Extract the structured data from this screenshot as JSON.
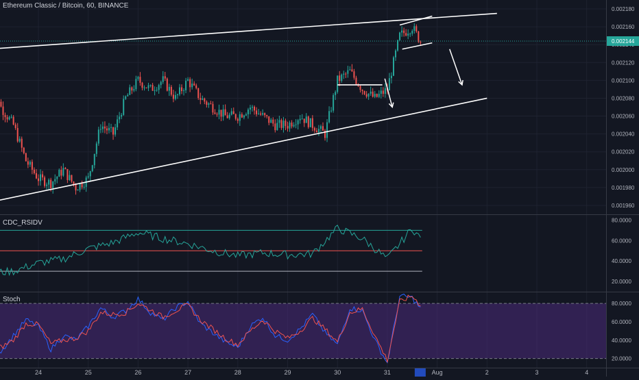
{
  "header": {
    "title": "Ethereum Classic / Bitcoin, 60, BINANCE"
  },
  "colors": {
    "background": "#131722",
    "grid": "#1e2230",
    "up": "#26a69a",
    "down": "#ef5350",
    "trendline": "#ffffff",
    "price_line": "#26a69a",
    "rsi_line": "#26a69a",
    "rsi_top": "#26a69a",
    "rsi_mid": "#ef5350",
    "rsi_bot": "#b2b5be",
    "rsi_fill": "#7b7a4a",
    "stoch_bg": "#2a1a4a",
    "stoch_band": "#4a2a7a",
    "stoch_k": "#2962ff",
    "stoch_d": "#ef5350"
  },
  "price_axis": {
    "ticks": [
      "0.002180",
      "0.002160",
      "0.002140",
      "0.002120",
      "0.002100",
      "0.002080",
      "0.002060",
      "0.002040",
      "0.002020",
      "0.002000",
      "0.001980",
      "0.001960"
    ],
    "last_price": "0.002144"
  },
  "rsi_pane": {
    "label": "CDC_RSIDV",
    "ticks": [
      "80.0000",
      "60.0000",
      "40.0000",
      "20.0000"
    ]
  },
  "stoch_pane": {
    "label": "Stoch",
    "ticks": [
      "80.0000",
      "60.0000",
      "40.0000",
      "20.0000"
    ]
  },
  "time_axis": {
    "labels": [
      "24",
      "25",
      "26",
      "27",
      "28",
      "29",
      "30",
      "31",
      "Aug",
      "2",
      "3",
      "4"
    ]
  },
  "chart_data": [
    {
      "type": "candlestick",
      "title": "Ethereum Classic / Bitcoin, 60, BINANCE",
      "x_unit": "day (Jul 23 = 0)",
      "ylim": [
        0.00195,
        0.00219
      ],
      "last_price": 0.002144,
      "close_path": [
        [
          0.0,
          0.002125
        ],
        [
          0.25,
          0.00207
        ],
        [
          0.5,
          0.00205
        ],
        [
          0.75,
          0.00201
        ],
        [
          1.0,
          0.00199
        ],
        [
          1.25,
          0.001985
        ],
        [
          1.5,
          0.002
        ],
        [
          1.75,
          0.00198
        ],
        [
          2.0,
          0.00199
        ],
        [
          2.25,
          0.00205
        ],
        [
          2.5,
          0.00204
        ],
        [
          2.75,
          0.00208
        ],
        [
          3.0,
          0.0021
        ],
        [
          3.25,
          0.00209
        ],
        [
          3.5,
          0.0021
        ],
        [
          3.75,
          0.00208
        ],
        [
          4.0,
          0.0021
        ],
        [
          4.25,
          0.00208
        ],
        [
          4.5,
          0.00207
        ],
        [
          4.75,
          0.00206
        ],
        [
          5.0,
          0.00206
        ],
        [
          5.25,
          0.00207
        ],
        [
          5.5,
          0.00206
        ],
        [
          5.75,
          0.00205
        ],
        [
          6.0,
          0.00205
        ],
        [
          6.25,
          0.00206
        ],
        [
          6.5,
          0.00205
        ],
        [
          6.75,
          0.00204
        ],
        [
          7.0,
          0.0021
        ],
        [
          7.25,
          0.00211
        ],
        [
          7.5,
          0.00209
        ],
        [
          7.75,
          0.00208
        ],
        [
          8.0,
          0.00209
        ],
        [
          8.25,
          0.00215
        ],
        [
          8.5,
          0.00216
        ],
        [
          8.7,
          0.00214
        ]
      ],
      "trendlines": [
        {
          "from": [
            0.0,
            0.002135
          ],
          "to": [
            10.2,
            0.002175
          ]
        },
        {
          "from": [
            0.15,
            0.001965
          ],
          "to": [
            10.0,
            0.00208
          ]
        },
        {
          "from": [
            8.25,
            0.002162
          ],
          "to": [
            8.9,
            0.002172
          ]
        },
        {
          "from": [
            8.3,
            0.002135
          ],
          "to": [
            8.9,
            0.002142
          ]
        },
        {
          "from": [
            7.0,
            0.002095
          ],
          "to": [
            7.9,
            0.002095
          ]
        }
      ],
      "arrows": [
        {
          "from": [
            7.95,
            0.002102
          ],
          "to": [
            8.1,
            0.00207
          ]
        },
        {
          "from": [
            9.25,
            0.002135
          ],
          "to": [
            9.5,
            0.002095
          ]
        }
      ]
    },
    {
      "type": "line",
      "title": "CDC_RSIDV",
      "ylim": [
        10,
        85
      ],
      "levels": [
        70,
        50,
        30
      ],
      "series": [
        {
          "x": [
            0,
            0.5,
            1.0,
            1.5,
            2.0,
            2.5,
            3.0,
            3.5,
            4.0,
            4.5,
            5.0,
            5.5,
            6.0,
            6.5,
            7.0,
            7.5,
            8.0,
            8.5,
            8.7
          ],
          "values": [
            28,
            30,
            38,
            42,
            52,
            58,
            68,
            62,
            57,
            50,
            45,
            48,
            46,
            47,
            72,
            62,
            42,
            72,
            60
          ]
        }
      ]
    },
    {
      "type": "line",
      "title": "Stoch",
      "ylim": [
        10,
        92
      ],
      "levels": [
        80,
        20
      ],
      "series": [
        {
          "x": [
            0,
            0.25,
            0.5,
            0.75,
            1.0,
            1.25,
            1.5,
            1.75,
            2.0,
            2.25,
            2.5,
            2.75,
            3.0,
            3.25,
            3.5,
            3.75,
            4.0,
            4.25,
            4.5,
            4.75,
            5.0,
            5.25,
            5.5,
            5.75,
            6.0,
            6.25,
            6.5,
            6.75,
            7.0,
            7.25,
            7.5,
            7.75,
            8.0,
            8.25,
            8.5,
            8.7
          ],
          "values": [
            35,
            28,
            45,
            62,
            55,
            30,
            45,
            40,
            55,
            75,
            65,
            72,
            85,
            70,
            62,
            75,
            82,
            58,
            48,
            38,
            32,
            55,
            65,
            45,
            40,
            52,
            68,
            48,
            35,
            75,
            72,
            40,
            15,
            88,
            86,
            72
          ]
        },
        {
          "x": [
            0,
            0.25,
            0.5,
            0.75,
            1.0,
            1.25,
            1.5,
            1.75,
            2.0,
            2.25,
            2.5,
            2.75,
            3.0,
            3.25,
            3.5,
            3.75,
            4.0,
            4.25,
            4.5,
            4.75,
            5.0,
            5.25,
            5.5,
            5.75,
            6.0,
            6.25,
            6.5,
            6.75,
            7.0,
            7.25,
            7.5,
            7.75,
            8.0,
            8.25,
            8.5,
            8.7
          ],
          "values": [
            38,
            32,
            40,
            58,
            57,
            36,
            40,
            42,
            50,
            70,
            68,
            70,
            80,
            73,
            65,
            72,
            78,
            62,
            52,
            42,
            35,
            50,
            62,
            50,
            42,
            50,
            64,
            52,
            38,
            70,
            74,
            45,
            18,
            82,
            88,
            76
          ]
        }
      ]
    }
  ]
}
